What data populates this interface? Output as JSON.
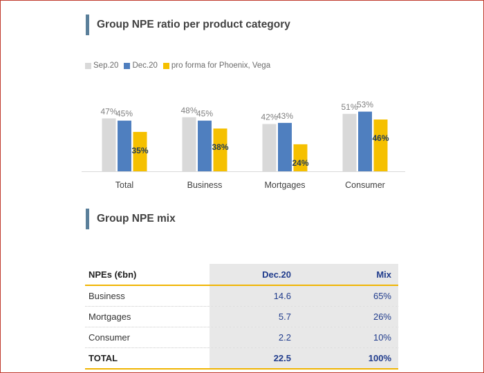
{
  "chart_section_title": "Group NPE ratio per product category",
  "mix_section_title": "Group NPE mix",
  "colors": {
    "sep20": "#d9d9d9",
    "dec20": "#4f7fbf",
    "proforma": "#f5c000",
    "label_gray": "#7f7f7f",
    "label_dark": "#1f3b5c",
    "accent_bar": "#5a7f9a"
  },
  "chart_data": {
    "type": "bar",
    "title": "Group NPE ratio per product category",
    "categories": [
      "Total",
      "Business",
      "Mortgages",
      "Consumer"
    ],
    "series": [
      {
        "name": "Sep.20",
        "values": [
          47,
          48,
          42,
          51
        ],
        "labels": [
          "47%",
          "48%",
          "42%",
          "51%"
        ]
      },
      {
        "name": "Dec.20",
        "values": [
          45,
          45,
          43,
          53
        ],
        "labels": [
          "45%",
          "45%",
          "43%",
          "53%"
        ]
      },
      {
        "name": "pro forma for Phoenix, Vega",
        "values": [
          35,
          38,
          24,
          46
        ],
        "labels": [
          "35%",
          "38%",
          "24%",
          "46%"
        ]
      }
    ],
    "xlabel": "",
    "ylabel": "",
    "ylim": [
      0,
      55
    ],
    "legend_position": "top-left",
    "grid": false
  },
  "table": {
    "headers": [
      "NPEs (€bn)",
      "Dec.20",
      "Mix"
    ],
    "rows": [
      {
        "label": "Business",
        "dec20": "14.6",
        "mix": "65%"
      },
      {
        "label": "Mortgages",
        "dec20": "5.7",
        "mix": "26%"
      },
      {
        "label": "Consumer",
        "dec20": "2.2",
        "mix": "10%"
      }
    ],
    "total": {
      "label": "TOTAL",
      "dec20": "22.5",
      "mix": "100%"
    }
  }
}
